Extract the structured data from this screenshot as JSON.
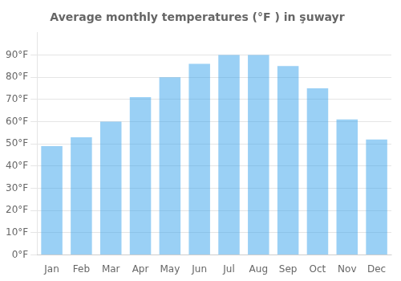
{
  "chart_data": {
    "type": "bar",
    "title": "Average monthly temperatures (°F ) in şuwayr",
    "categories": [
      "Jan",
      "Feb",
      "Mar",
      "Apr",
      "May",
      "Jun",
      "Jul",
      "Aug",
      "Sep",
      "Oct",
      "Nov",
      "Dec"
    ],
    "values": [
      49,
      53,
      60,
      71,
      80,
      86,
      90,
      90,
      85,
      75,
      61,
      52
    ],
    "ylim": [
      0,
      100
    ],
    "yticks": [
      {
        "value": 0,
        "label": "0°F"
      },
      {
        "value": 10,
        "label": "10°F"
      },
      {
        "value": 20,
        "label": "20°F"
      },
      {
        "value": 30,
        "label": "30°F"
      },
      {
        "value": 40,
        "label": "40°F"
      },
      {
        "value": 50,
        "label": "50°F"
      },
      {
        "value": 60,
        "label": "60°F"
      },
      {
        "value": 70,
        "label": "70°F"
      },
      {
        "value": 80,
        "label": "80°F"
      },
      {
        "value": 90,
        "label": "90°F"
      }
    ],
    "grid": true
  }
}
